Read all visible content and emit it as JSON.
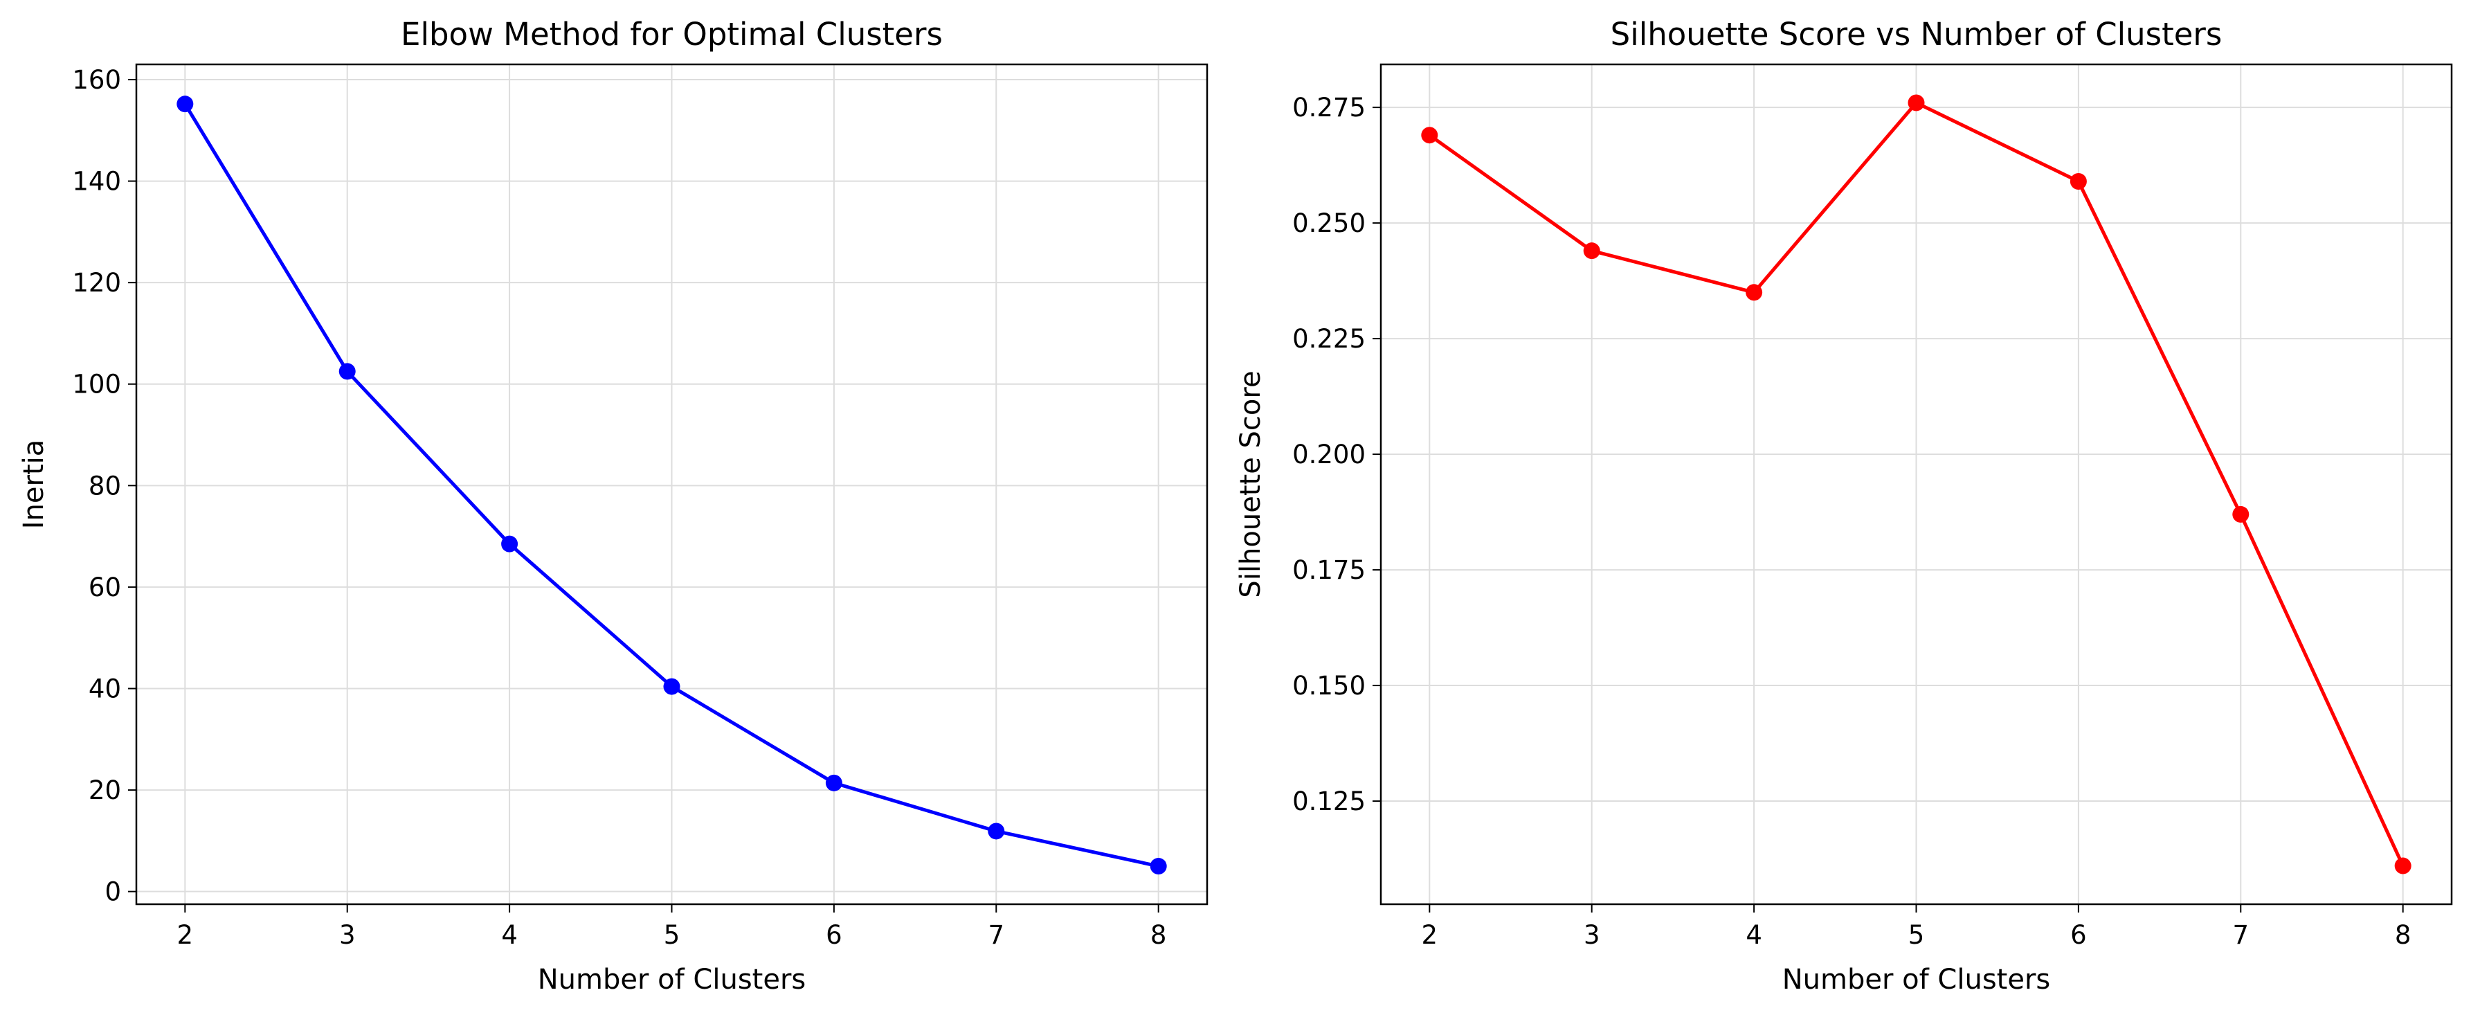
{
  "chart_data": [
    {
      "type": "line",
      "title": "Elbow Method for Optimal Clusters",
      "xlabel": "Number of Clusters",
      "ylabel": "Inertia",
      "x": [
        2,
        3,
        4,
        5,
        6,
        7,
        8
      ],
      "xlim": [
        1.7,
        8.3
      ],
      "ylim": [
        -2.5,
        163
      ],
      "xticks": [
        2,
        3,
        4,
        5,
        6,
        7,
        8
      ],
      "xtick_labels": [
        "2",
        "3",
        "4",
        "5",
        "6",
        "7",
        "8"
      ],
      "yticks": [
        0,
        20,
        40,
        60,
        80,
        100,
        120,
        140,
        160
      ],
      "ytick_labels": [
        "0",
        "20",
        "40",
        "60",
        "80",
        "100",
        "120",
        "140",
        "160"
      ],
      "grid": true,
      "series": [
        {
          "values": [
            155.2,
            102.5,
            68.5,
            40.4,
            21.4,
            11.9,
            5.0
          ],
          "color": "#0000ff",
          "marker": "circle"
        }
      ]
    },
    {
      "type": "line",
      "title": "Silhouette Score vs Number of Clusters",
      "xlabel": "Number of Clusters",
      "ylabel": "Silhouette Score",
      "x": [
        2,
        3,
        4,
        5,
        6,
        7,
        8
      ],
      "xlim": [
        1.7,
        8.3
      ],
      "ylim": [
        0.1027,
        0.2843
      ],
      "xticks": [
        2,
        3,
        4,
        5,
        6,
        7,
        8
      ],
      "xtick_labels": [
        "2",
        "3",
        "4",
        "5",
        "6",
        "7",
        "8"
      ],
      "yticks": [
        0.125,
        0.15,
        0.175,
        0.2,
        0.225,
        0.25,
        0.275
      ],
      "ytick_labels": [
        "0.125",
        "0.150",
        "0.175",
        "0.200",
        "0.225",
        "0.250",
        "0.275"
      ],
      "grid": true,
      "series": [
        {
          "values": [
            0.269,
            0.244,
            0.235,
            0.276,
            0.259,
            0.187,
            0.111
          ],
          "color": "#ff0000",
          "marker": "circle"
        }
      ]
    }
  ]
}
